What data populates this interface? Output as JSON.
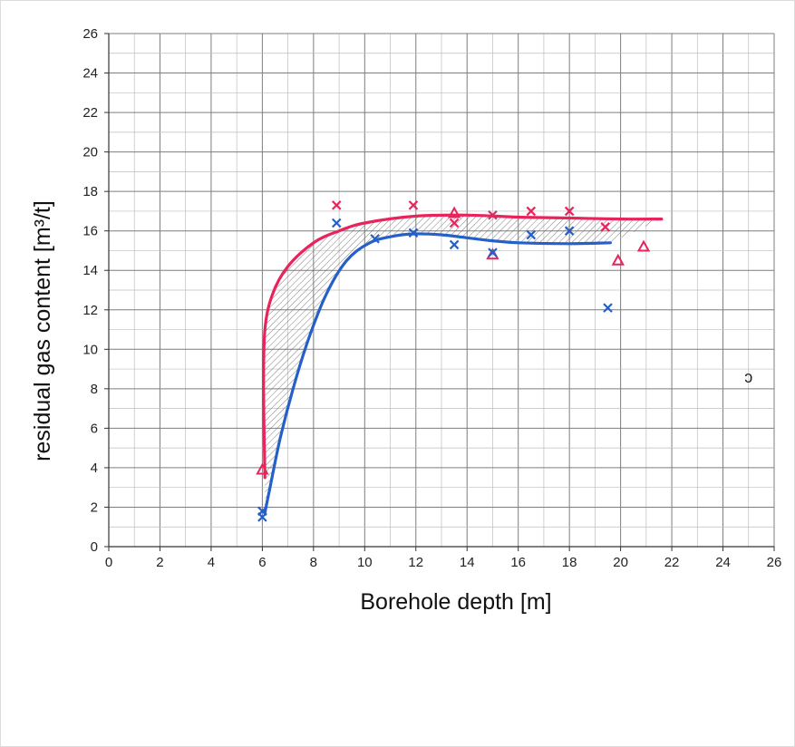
{
  "chart_data": {
    "type": "scatter",
    "title": "",
    "xlabel": "Borehole depth [m]",
    "ylabel": "residual gas content [m³/t]",
    "xlim": [
      0,
      26
    ],
    "ylim": [
      0,
      26
    ],
    "x_ticks": [
      0,
      2,
      4,
      6,
      8,
      10,
      12,
      14,
      16,
      18,
      20,
      22,
      24,
      26
    ],
    "y_ticks": [
      0,
      2,
      4,
      6,
      8,
      10,
      12,
      14,
      16,
      18,
      20,
      22,
      24,
      26
    ],
    "grid": "on",
    "legend": "none",
    "series": [
      {
        "color": "#e8245c",
        "kind": "curve",
        "points": [
          [
            6.1,
            3.5
          ],
          [
            6.05,
            8
          ],
          [
            6.1,
            11
          ],
          [
            6.4,
            12.8
          ],
          [
            7,
            14.2
          ],
          [
            8,
            15.4
          ],
          [
            9,
            16.0
          ],
          [
            10,
            16.4
          ],
          [
            12,
            16.75
          ],
          [
            14,
            16.8
          ],
          [
            16,
            16.7
          ],
          [
            18,
            16.65
          ],
          [
            20,
            16.6
          ],
          [
            21.6,
            16.6
          ]
        ]
      },
      {
        "color": "#2560c8",
        "kind": "curve",
        "points": [
          [
            6.1,
            1.7
          ],
          [
            6.3,
            3.0
          ],
          [
            6.7,
            5.5
          ],
          [
            7.2,
            8.0
          ],
          [
            7.8,
            10.5
          ],
          [
            8.5,
            12.8
          ],
          [
            9.3,
            14.5
          ],
          [
            10.2,
            15.4
          ],
          [
            11.2,
            15.75
          ],
          [
            12,
            15.85
          ],
          [
            13,
            15.8
          ],
          [
            14,
            15.65
          ],
          [
            15,
            15.5
          ],
          [
            16,
            15.4
          ],
          [
            18,
            15.35
          ],
          [
            19.6,
            15.4
          ]
        ]
      },
      {
        "color": "#e8245c",
        "marker": "x",
        "points": [
          [
            8.9,
            17.3
          ],
          [
            11.9,
            17.3
          ],
          [
            13.5,
            16.4
          ],
          [
            15,
            16.8
          ],
          [
            16.5,
            17.0
          ],
          [
            18,
            17.0
          ],
          [
            19.4,
            16.2
          ]
        ]
      },
      {
        "color": "#e8245c",
        "marker": "triangle",
        "points": [
          [
            6,
            3.9
          ],
          [
            13.5,
            16.9
          ],
          [
            15,
            14.8
          ],
          [
            19.9,
            14.5
          ],
          [
            20.9,
            15.2
          ]
        ]
      },
      {
        "color": "#2560c8",
        "marker": "x",
        "points": [
          [
            6,
            1.5
          ],
          [
            6,
            1.8
          ],
          [
            8.9,
            16.4
          ],
          [
            10.4,
            15.6
          ],
          [
            11.9,
            15.9
          ],
          [
            13.5,
            15.3
          ],
          [
            15,
            14.9
          ],
          [
            16.5,
            15.8
          ],
          [
            18,
            16.0
          ],
          [
            19.5,
            12.1
          ]
        ]
      }
    ],
    "hatched_region": {
      "between": "red and blue curves",
      "color": "#6a6a6a",
      "x_range": [
        6.1,
        21.6
      ]
    },
    "annotations": [
      {
        "text": "ɔ",
        "x": 25,
        "y": 8.6
      }
    ]
  }
}
